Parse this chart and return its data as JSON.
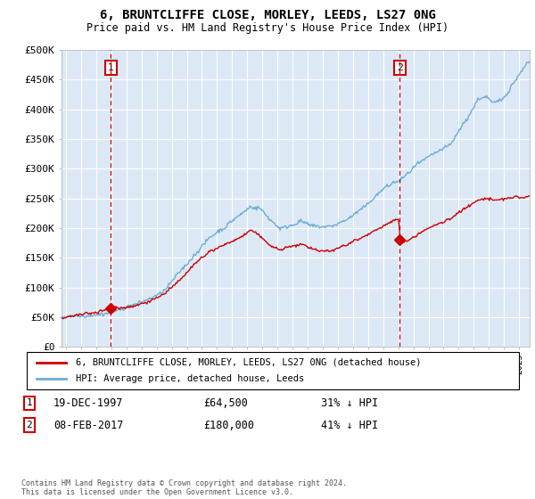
{
  "title": "6, BRUNTCLIFFE CLOSE, MORLEY, LEEDS, LS27 0NG",
  "subtitle": "Price paid vs. HM Land Registry's House Price Index (HPI)",
  "ylim": [
    0,
    500000
  ],
  "yticks": [
    0,
    50000,
    100000,
    150000,
    200000,
    250000,
    300000,
    350000,
    400000,
    450000,
    500000
  ],
  "ytick_labels": [
    "£0",
    "£50K",
    "£100K",
    "£150K",
    "£200K",
    "£250K",
    "£300K",
    "£350K",
    "£400K",
    "£450K",
    "£500K"
  ],
  "sale1_date": 1997.97,
  "sale1_price": 64500,
  "sale1_label": "1",
  "sale1_text": "19-DEC-1997",
  "sale1_price_text": "£64,500",
  "sale1_pct": "31% ↓ HPI",
  "sale2_date": 2017.1,
  "sale2_price": 180000,
  "sale2_label": "2",
  "sale2_text": "08-FEB-2017",
  "sale2_price_text": "£180,000",
  "sale2_pct": "41% ↓ HPI",
  "hpi_color": "#6baed6",
  "price_color": "#cc0000",
  "vline_color": "#cc0000",
  "bg_color": "#dce8f5",
  "grid_color": "#ffffff",
  "legend_label_price": "6, BRUNTCLIFFE CLOSE, MORLEY, LEEDS, LS27 0NG (detached house)",
  "legend_label_hpi": "HPI: Average price, detached house, Leeds",
  "footnote": "Contains HM Land Registry data © Crown copyright and database right 2024.\nThis data is licensed under the Open Government Licence v3.0.",
  "xlim_start": 1994.7,
  "xlim_end": 2025.7,
  "hpi_base_points": [
    [
      1994.7,
      48000
    ],
    [
      1995.5,
      52000
    ],
    [
      1996.5,
      55000
    ],
    [
      1997.5,
      60000
    ],
    [
      1998.5,
      67000
    ],
    [
      1999.5,
      75000
    ],
    [
      2000.5,
      85000
    ],
    [
      2001.5,
      100000
    ],
    [
      2002.5,
      130000
    ],
    [
      2003.5,
      160000
    ],
    [
      2004.5,
      190000
    ],
    [
      2005.5,
      205000
    ],
    [
      2006.5,
      225000
    ],
    [
      2007.2,
      240000
    ],
    [
      2007.8,
      235000
    ],
    [
      2008.5,
      215000
    ],
    [
      2009.2,
      200000
    ],
    [
      2009.8,
      205000
    ],
    [
      2010.5,
      212000
    ],
    [
      2011.0,
      208000
    ],
    [
      2011.8,
      205000
    ],
    [
      2012.5,
      205000
    ],
    [
      2013.0,
      210000
    ],
    [
      2013.5,
      215000
    ],
    [
      2014.0,
      222000
    ],
    [
      2014.8,
      235000
    ],
    [
      2015.5,
      252000
    ],
    [
      2016.2,
      270000
    ],
    [
      2016.8,
      278000
    ],
    [
      2017.1,
      280000
    ],
    [
      2017.8,
      295000
    ],
    [
      2018.5,
      310000
    ],
    [
      2019.5,
      325000
    ],
    [
      2020.5,
      340000
    ],
    [
      2021.3,
      370000
    ],
    [
      2021.8,
      390000
    ],
    [
      2022.3,
      415000
    ],
    [
      2022.8,
      420000
    ],
    [
      2023.3,
      410000
    ],
    [
      2023.8,
      415000
    ],
    [
      2024.3,
      430000
    ],
    [
      2024.8,
      450000
    ],
    [
      2025.3,
      470000
    ],
    [
      2025.7,
      480000
    ]
  ],
  "price_base_points": [
    [
      1994.7,
      48000
    ],
    [
      1995.5,
      51000
    ],
    [
      1996.5,
      54000
    ],
    [
      1997.5,
      59000
    ],
    [
      1997.97,
      64500
    ],
    [
      1998.5,
      63000
    ],
    [
      1999.5,
      68000
    ],
    [
      2000.5,
      75000
    ],
    [
      2001.5,
      88000
    ],
    [
      2002.5,
      108000
    ],
    [
      2003.5,
      135000
    ],
    [
      2004.5,
      158000
    ],
    [
      2005.5,
      168000
    ],
    [
      2006.5,
      182000
    ],
    [
      2007.2,
      195000
    ],
    [
      2007.8,
      188000
    ],
    [
      2008.5,
      170000
    ],
    [
      2009.2,
      162000
    ],
    [
      2009.8,
      167000
    ],
    [
      2010.5,
      173000
    ],
    [
      2011.0,
      168000
    ],
    [
      2011.8,
      162000
    ],
    [
      2012.5,
      162000
    ],
    [
      2013.0,
      167000
    ],
    [
      2013.5,
      172000
    ],
    [
      2014.0,
      178000
    ],
    [
      2014.8,
      188000
    ],
    [
      2015.5,
      198000
    ],
    [
      2016.2,
      208000
    ],
    [
      2016.8,
      218000
    ],
    [
      2017.05,
      220000
    ],
    [
      2017.1,
      180000
    ],
    [
      2017.5,
      183000
    ],
    [
      2018.0,
      190000
    ],
    [
      2018.5,
      198000
    ],
    [
      2019.5,
      210000
    ],
    [
      2020.5,
      220000
    ],
    [
      2021.3,
      235000
    ],
    [
      2021.8,
      242000
    ],
    [
      2022.3,
      250000
    ],
    [
      2022.8,
      252000
    ],
    [
      2023.3,
      248000
    ],
    [
      2023.8,
      250000
    ],
    [
      2024.3,
      252000
    ],
    [
      2024.8,
      255000
    ],
    [
      2025.3,
      252000
    ],
    [
      2025.7,
      255000
    ]
  ]
}
